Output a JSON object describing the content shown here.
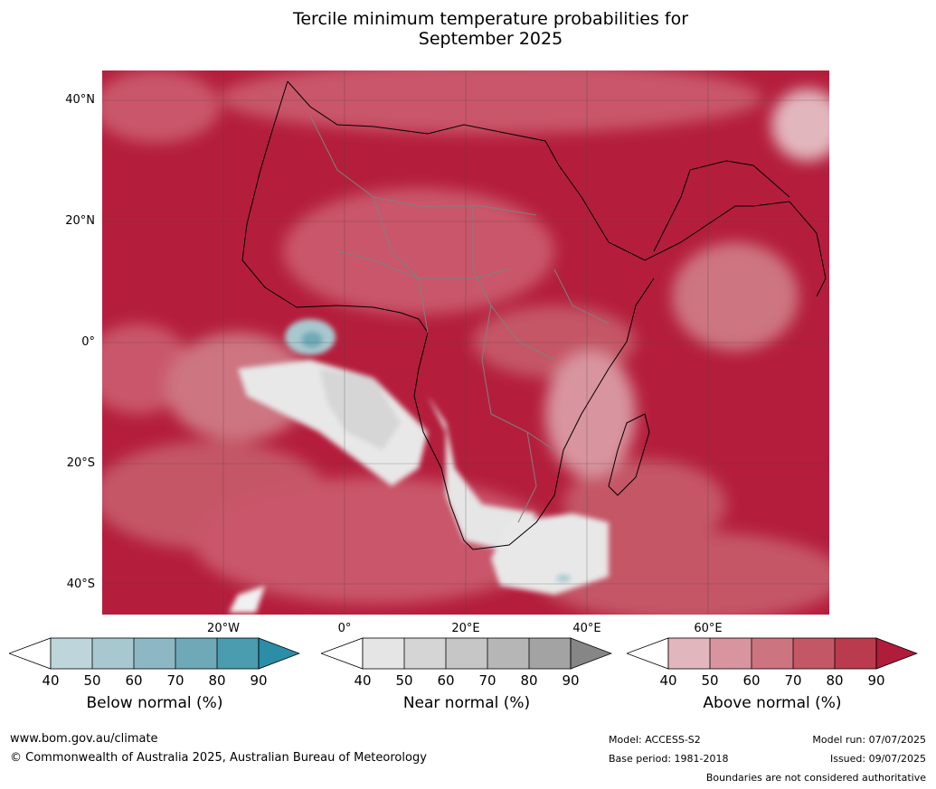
{
  "title_line1": "Tercile minimum temperature probabilities for",
  "title_line2": "September 2025",
  "lat_labels": [
    "40°N",
    "20°N",
    "0°",
    "20°S",
    "40°S"
  ],
  "lon_labels": [
    "20°W",
    "0°",
    "20°E",
    "40°E",
    "60°E"
  ],
  "colorbars": [
    {
      "title": "Below normal (%)",
      "ticks": [
        "40",
        "50",
        "60",
        "70",
        "80",
        "90"
      ],
      "colors": [
        "#bfd5dc",
        "#a8c8cf",
        "#8db8c3",
        "#6fa9b7",
        "#4a9cae"
      ],
      "extend_color": "#2b8ea6"
    },
    {
      "title": "Near normal (%)",
      "ticks": [
        "40",
        "50",
        "60",
        "70",
        "80",
        "90"
      ],
      "colors": [
        "#e5e5e5",
        "#d5d5d5",
        "#c6c6c6",
        "#b6b6b6",
        "#a3a3a3"
      ],
      "extend_color": "#868686"
    },
    {
      "title": "Above normal (%)",
      "ticks": [
        "40",
        "50",
        "60",
        "70",
        "80",
        "90"
      ],
      "colors": [
        "#e2b6bd",
        "#d8949f",
        "#cd7481",
        "#c45766",
        "#ba3a4e"
      ],
      "extend_color": "#b01c3a"
    }
  ],
  "footer": {
    "url": "www.bom.gov.au/climate",
    "copyright": "© Commonwealth of Australia 2025, Australian Bureau of Meteorology",
    "model": "Model: ACCESS-S2",
    "base_period": "Base period: 1981-2018",
    "model_run": "Model run: 07/07/2025",
    "issued": "Issued: 09/07/2025",
    "disclaimer": "Boundaries are not considered authoritative"
  }
}
